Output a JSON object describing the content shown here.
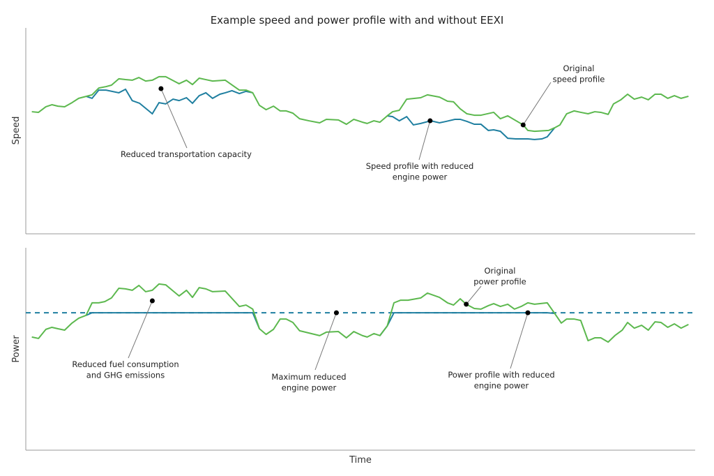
{
  "chart_data": [
    {
      "type": "line",
      "title": "Example speed and power profile with and without EEXI",
      "xlabel": "",
      "ylabel": "Speed",
      "xlim": [
        0,
        100
      ],
      "ylim": [
        0,
        100
      ],
      "grid": false,
      "colors": {
        "original": "#5cb84e",
        "reduced": "#1f7fa0"
      },
      "series": [
        {
          "key": "original",
          "x": [
            0.9,
            1.9,
            3.0,
            3.9,
            4.8,
            5.8,
            6.9,
            7.9,
            9.9,
            10.9,
            12.0,
            12.8,
            13.9,
            14.9,
            15.9,
            16.9,
            17.9,
            18.9,
            19.9,
            20.9,
            22.9,
            24.0,
            24.9,
            25.9,
            26.9,
            27.9,
            29.8,
            31.9,
            32.9,
            33.9,
            34.9,
            35.9,
            37.0,
            38.0,
            38.9,
            39.9,
            40.9,
            42.3,
            43.9,
            44.9,
            46.7,
            47.9,
            49.0,
            50.3,
            51.0,
            52.0,
            52.9,
            54.0,
            54.8,
            55.8,
            56.9,
            59.0,
            60.0,
            61.8,
            63.0,
            63.9,
            64.9,
            65.9,
            67.0,
            68.0,
            69.9,
            70.9,
            72.0,
            74.3,
            75.0,
            76.0,
            78.1,
            79.0,
            79.8,
            80.8,
            81.9,
            82.9,
            84.0,
            85.0,
            85.9,
            87.0,
            87.8,
            88.9,
            89.9,
            90.9,
            92.0,
            93.0,
            94.0,
            94.9,
            95.9,
            96.9,
            97.9,
            99.0
          ],
          "y": [
            59.3,
            59.0,
            61.7,
            62.7,
            62.0,
            61.7,
            63.7,
            65.8,
            67.5,
            70.8,
            71.5,
            72.2,
            75.3,
            74.9,
            74.6,
            75.9,
            74.2,
            74.6,
            76.3,
            76.3,
            72.9,
            74.6,
            72.5,
            75.6,
            74.9,
            74.2,
            74.6,
            69.8,
            69.8,
            68.5,
            62.4,
            60.3,
            62.0,
            59.7,
            59.7,
            58.6,
            55.9,
            54.9,
            53.9,
            55.6,
            55.3,
            53.2,
            55.6,
            54.2,
            53.6,
            54.9,
            54.2,
            57.3,
            59.3,
            60.0,
            65.4,
            66.1,
            67.5,
            66.4,
            64.4,
            64.1,
            60.7,
            58.3,
            57.6,
            57.6,
            59.0,
            55.9,
            57.3,
            52.9,
            50.2,
            49.8,
            50.2,
            51.5,
            52.9,
            58.3,
            59.7,
            59.0,
            58.3,
            59.3,
            59.0,
            58.0,
            63.1,
            65.1,
            67.8,
            65.4,
            66.4,
            65.1,
            67.8,
            67.8,
            65.8,
            67.1,
            65.8,
            66.8
          ]
        },
        {
          "key": "reduced",
          "segments": [
            {
              "x": [
                9.0,
                9.9,
                10.9,
                12.0,
                13.9,
                14.9,
                15.9,
                17.0,
                18.9,
                19.9,
                20.9,
                22.0,
                22.9,
                24.0,
                24.9,
                25.9,
                26.9,
                27.9,
                29.0,
                29.8,
                30.8,
                31.9,
                32.9,
                33.9
              ],
              "y": [
                66.8,
                65.8,
                69.8,
                69.8,
                68.5,
                70.2,
                64.7,
                63.4,
                58.3,
                63.7,
                63.1,
                65.4,
                64.7,
                66.1,
                63.4,
                67.1,
                68.5,
                65.8,
                67.8,
                68.5,
                69.5,
                68.1,
                69.2,
                68.5
              ]
            },
            {
              "x": [
                54.0,
                54.8,
                55.8,
                56.9,
                57.9,
                59.0,
                60.5,
                61.8,
                62.8,
                64.1,
                64.9,
                65.9,
                67.0,
                68.0,
                69.1,
                69.9,
                70.9,
                72.0,
                73.2,
                75.0,
                76.0,
                77.1,
                77.9,
                79.0
              ],
              "y": [
                57.3,
                56.9,
                54.9,
                56.9,
                52.9,
                53.6,
                54.9,
                53.9,
                54.6,
                55.6,
                55.6,
                54.6,
                53.2,
                53.2,
                50.2,
                50.5,
                49.8,
                46.4,
                46.1,
                46.1,
                45.8,
                46.1,
                47.1,
                51.5
              ]
            }
          ]
        }
      ],
      "annotations": [
        {
          "lines": [
            "Reduced transportation capacity"
          ],
          "x": 20.2,
          "y": 70.5
        },
        {
          "lines": [
            "Speed profile with reduced",
            "engine power"
          ],
          "x": 60.4,
          "y": 54.9
        },
        {
          "lines": [
            "Original",
            "speed profile"
          ],
          "x": 74.3,
          "y": 52.9
        }
      ]
    },
    {
      "type": "line",
      "xlabel": "Time",
      "ylabel": "Power",
      "xlim": [
        0,
        100
      ],
      "ylim": [
        0,
        100
      ],
      "grid": false,
      "max_reduced_power": 67.9,
      "colors": {
        "original": "#5cb84e",
        "reduced": "#1f7fa0",
        "limit": "#1f7fa0"
      },
      "series": [
        {
          "key": "original",
          "x": [
            0.9,
            1.9,
            3.0,
            3.9,
            4.8,
            5.8,
            6.9,
            7.9,
            9.0,
            9.9,
            10.9,
            11.8,
            12.8,
            13.9,
            14.9,
            15.9,
            16.9,
            17.9,
            18.9,
            19.9,
            20.9,
            22.9,
            24.0,
            24.9,
            25.9,
            26.9,
            27.9,
            29.8,
            31.9,
            32.9,
            33.9,
            34.9,
            35.9,
            37.0,
            38.0,
            38.9,
            39.9,
            40.9,
            42.3,
            43.9,
            44.9,
            46.7,
            47.9,
            49.0,
            50.3,
            51.0,
            52.0,
            52.9,
            54.0,
            55.0,
            56.0,
            57.1,
            59.0,
            60.0,
            61.8,
            63.0,
            63.9,
            64.9,
            65.8,
            67.0,
            68.0,
            69.1,
            69.9,
            70.9,
            72.0,
            73.0,
            74.0,
            75.0,
            76.0,
            77.9,
            79.0,
            80.0,
            80.8,
            81.9,
            82.9,
            84.0,
            85.0,
            85.9,
            87.0,
            88.0,
            89.1,
            89.9,
            90.9,
            92.0,
            93.0,
            94.0,
            94.9,
            95.9,
            96.9,
            97.9,
            99.0
          ],
          "y": [
            55.9,
            55.2,
            59.7,
            60.7,
            60.0,
            59.3,
            62.8,
            65.2,
            66.6,
            72.8,
            72.8,
            73.4,
            75.2,
            80.0,
            79.7,
            79.0,
            81.4,
            78.3,
            79.0,
            82.1,
            81.7,
            76.2,
            79.0,
            75.5,
            80.3,
            79.7,
            78.3,
            78.6,
            71.0,
            71.7,
            69.7,
            60.0,
            57.2,
            59.7,
            64.8,
            64.8,
            63.1,
            59.0,
            57.9,
            56.6,
            58.3,
            58.6,
            55.5,
            58.6,
            56.6,
            55.9,
            57.6,
            56.6,
            61.4,
            72.8,
            74.1,
            74.1,
            75.2,
            77.6,
            75.5,
            72.8,
            71.7,
            74.8,
            72.1,
            70.0,
            69.7,
            71.4,
            72.4,
            71.0,
            72.1,
            69.7,
            71.0,
            72.8,
            72.1,
            72.8,
            67.6,
            62.8,
            64.8,
            64.8,
            64.1,
            54.1,
            55.5,
            55.5,
            53.4,
            56.6,
            59.3,
            63.1,
            60.3,
            61.7,
            59.3,
            63.4,
            63.1,
            60.7,
            62.4,
            60.3,
            62.1
          ]
        },
        {
          "key": "reduced",
          "ranges": [
            [
              8.0,
              34.9
            ],
            [
              52.9,
              79.0
            ]
          ]
        }
      ],
      "annotations": [
        {
          "lines": [
            "Original",
            "power profile"
          ],
          "x": 65.8,
          "y": 72.1
        },
        {
          "lines": [
            "Reduced fuel consumption",
            "and GHG emissions"
          ],
          "x": 18.9,
          "y": 73.8
        },
        {
          "lines": [
            "Maximum reduced",
            "engine power"
          ],
          "x": 46.4,
          "y": 67.9
        },
        {
          "lines": [
            "Power profile with reduced",
            "engine power"
          ],
          "x": 75.0,
          "y": 67.9
        }
      ]
    }
  ]
}
